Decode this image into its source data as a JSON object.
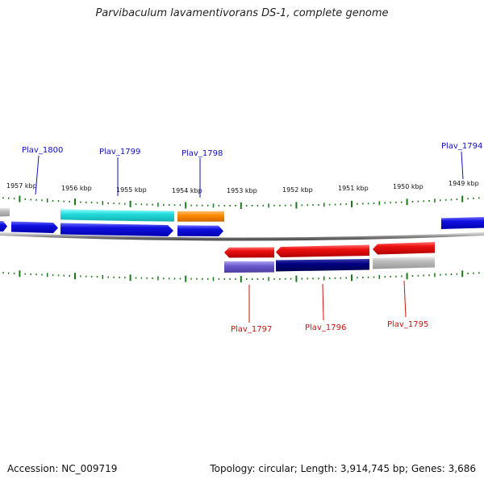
{
  "title": "Parvibaculum lavamentivorans DS-1, complete genome",
  "footer": {
    "accession": "Accession: NC_009719",
    "stats": "Topology: circular; Length: 3,914,745 bp; Genes: 3,686"
  },
  "ruler": [
    "1957 kbp",
    "1956 kbp",
    "1955 kbp",
    "1954 kbp",
    "1953 kbp",
    "1952 kbp",
    "1951 kbp",
    "1950 kbp",
    "1949 kbp"
  ],
  "gene_labels": [
    "Plav_1800",
    "Plav_1799",
    "Plav_1798",
    "Plav_1794",
    "Plav_1797",
    "Plav_1796",
    "Plav_1795"
  ],
  "colors": {
    "forward_gene": "#1010e0",
    "reverse_gene": "#ee1111",
    "forward_label": "#1010c0",
    "reverse_label": "#cc1111",
    "tick": "#1a7a1a",
    "backbone": "#888888",
    "cog_cyan": "#22dddd",
    "cog_orange": "#ff8c00",
    "cog_lavender": "#6a5acd",
    "cog_navy": "#000080",
    "cog_gray": "#bbbbbb"
  }
}
